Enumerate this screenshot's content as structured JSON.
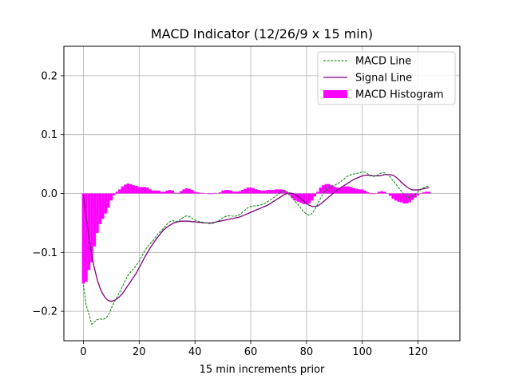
{
  "chart_data": {
    "type": "line",
    "title": "MACD Indicator (12/26/9 x 15 min)",
    "xlabel": "15 min increments prior",
    "ylabel": "",
    "xlim": [
      -7,
      135
    ],
    "ylim": [
      -0.25,
      0.25
    ],
    "x_ticks": [
      0,
      20,
      40,
      60,
      80,
      100,
      120
    ],
    "y_ticks": [
      -0.2,
      -0.1,
      0.0,
      0.1,
      0.2
    ],
    "x_tick_labels": [
      "0",
      "20",
      "40",
      "60",
      "80",
      "100",
      "120"
    ],
    "y_tick_labels": [
      "−0.2",
      "−0.1",
      "0.0",
      "0.1",
      "0.2"
    ],
    "grid": true,
    "legend_position": "top-right",
    "colors": {
      "macd": "#008000",
      "signal": "#800080",
      "histogram": "#ff00ff",
      "grid": "#b0b0b0"
    },
    "series": [
      {
        "name": "MACD Line",
        "style": "dashed",
        "points": [
          [
            0,
            -0.155
          ],
          [
            1,
            -0.19
          ],
          [
            2,
            -0.205
          ],
          [
            3,
            -0.222
          ],
          [
            4,
            -0.218
          ],
          [
            5,
            -0.214
          ],
          [
            6,
            -0.213
          ],
          [
            7,
            -0.214
          ],
          [
            8,
            -0.212
          ],
          [
            9,
            -0.206
          ],
          [
            10,
            -0.195
          ],
          [
            11,
            -0.185
          ],
          [
            12,
            -0.176
          ],
          [
            13,
            -0.168
          ],
          [
            14,
            -0.158
          ],
          [
            15,
            -0.148
          ],
          [
            16,
            -0.139
          ],
          [
            17,
            -0.133
          ],
          [
            18,
            -0.128
          ],
          [
            19,
            -0.122
          ],
          [
            20,
            -0.115
          ],
          [
            21,
            -0.106
          ],
          [
            22,
            -0.097
          ],
          [
            23,
            -0.09
          ],
          [
            24,
            -0.085
          ],
          [
            25,
            -0.08
          ],
          [
            26,
            -0.073
          ],
          [
            27,
            -0.067
          ],
          [
            28,
            -0.063
          ],
          [
            29,
            -0.058
          ],
          [
            30,
            -0.052
          ],
          [
            31,
            -0.048
          ],
          [
            32,
            -0.046
          ],
          [
            33,
            -0.048
          ],
          [
            34,
            -0.047
          ],
          [
            35,
            -0.043
          ],
          [
            36,
            -0.04
          ],
          [
            37,
            -0.038
          ],
          [
            38,
            -0.039
          ],
          [
            39,
            -0.042
          ],
          [
            40,
            -0.045
          ],
          [
            41,
            -0.047
          ],
          [
            42,
            -0.048
          ],
          [
            43,
            -0.049
          ],
          [
            44,
            -0.05
          ],
          [
            45,
            -0.051
          ],
          [
            46,
            -0.051
          ],
          [
            47,
            -0.05
          ],
          [
            48,
            -0.048
          ],
          [
            49,
            -0.045
          ],
          [
            50,
            -0.041
          ],
          [
            51,
            -0.039
          ],
          [
            52,
            -0.038
          ],
          [
            53,
            -0.038
          ],
          [
            54,
            -0.039
          ],
          [
            55,
            -0.038
          ],
          [
            56,
            -0.036
          ],
          [
            57,
            -0.032
          ],
          [
            58,
            -0.028
          ],
          [
            59,
            -0.024
          ],
          [
            60,
            -0.022
          ],
          [
            61,
            -0.021
          ],
          [
            62,
            -0.021
          ],
          [
            63,
            -0.02
          ],
          [
            64,
            -0.019
          ],
          [
            65,
            -0.017
          ],
          [
            66,
            -0.014
          ],
          [
            67,
            -0.011
          ],
          [
            68,
            -0.008
          ],
          [
            69,
            -0.004
          ],
          [
            70,
            -0.001
          ],
          [
            71,
            0.002
          ],
          [
            72,
            0.004
          ],
          [
            73,
            0.003
          ],
          [
            74,
            -0.002
          ],
          [
            75,
            -0.008
          ],
          [
            76,
            -0.014
          ],
          [
            77,
            -0.019
          ],
          [
            78,
            -0.025
          ],
          [
            79,
            -0.031
          ],
          [
            80,
            -0.035
          ],
          [
            81,
            -0.037
          ],
          [
            82,
            -0.034
          ],
          [
            83,
            -0.027
          ],
          [
            84,
            -0.018
          ],
          [
            85,
            -0.008
          ],
          [
            86,
            0.0
          ],
          [
            87,
            0.006
          ],
          [
            88,
            0.01
          ],
          [
            89,
            0.012
          ],
          [
            90,
            0.014
          ],
          [
            91,
            0.016
          ],
          [
            92,
            0.019
          ],
          [
            93,
            0.023
          ],
          [
            94,
            0.027
          ],
          [
            95,
            0.03
          ],
          [
            96,
            0.032
          ],
          [
            97,
            0.033
          ],
          [
            98,
            0.034
          ],
          [
            99,
            0.035
          ],
          [
            100,
            0.037
          ],
          [
            101,
            0.036
          ],
          [
            102,
            0.033
          ],
          [
            103,
            0.03
          ],
          [
            104,
            0.029
          ],
          [
            105,
            0.03
          ],
          [
            106,
            0.033
          ],
          [
            107,
            0.035
          ],
          [
            108,
            0.035
          ],
          [
            109,
            0.032
          ],
          [
            110,
            0.028
          ],
          [
            111,
            0.022
          ],
          [
            112,
            0.016
          ],
          [
            113,
            0.01
          ],
          [
            114,
            0.004
          ],
          [
            115,
            -0.002
          ],
          [
            116,
            -0.006
          ],
          [
            117,
            -0.007
          ],
          [
            118,
            -0.005
          ],
          [
            119,
            -0.001
          ],
          [
            120,
            0.003
          ],
          [
            121,
            0.007
          ],
          [
            122,
            0.01
          ],
          [
            123,
            0.012
          ],
          [
            124,
            0.013
          ]
        ]
      },
      {
        "name": "Signal Line",
        "style": "solid",
        "points": [
          [
            0,
            -0.002
          ],
          [
            1,
            -0.04
          ],
          [
            2,
            -0.075
          ],
          [
            3,
            -0.105
          ],
          [
            4,
            -0.128
          ],
          [
            5,
            -0.147
          ],
          [
            6,
            -0.161
          ],
          [
            7,
            -0.171
          ],
          [
            8,
            -0.178
          ],
          [
            9,
            -0.182
          ],
          [
            10,
            -0.183
          ],
          [
            11,
            -0.182
          ],
          [
            12,
            -0.179
          ],
          [
            13,
            -0.175
          ],
          [
            14,
            -0.17
          ],
          [
            15,
            -0.163
          ],
          [
            16,
            -0.156
          ],
          [
            17,
            -0.149
          ],
          [
            18,
            -0.142
          ],
          [
            19,
            -0.135
          ],
          [
            20,
            -0.126
          ],
          [
            21,
            -0.117
          ],
          [
            22,
            -0.108
          ],
          [
            23,
            -0.1
          ],
          [
            24,
            -0.092
          ],
          [
            25,
            -0.085
          ],
          [
            26,
            -0.078
          ],
          [
            27,
            -0.072
          ],
          [
            28,
            -0.066
          ],
          [
            29,
            -0.061
          ],
          [
            30,
            -0.057
          ],
          [
            31,
            -0.054
          ],
          [
            32,
            -0.051
          ],
          [
            33,
            -0.049
          ],
          [
            34,
            -0.048
          ],
          [
            35,
            -0.047
          ],
          [
            36,
            -0.047
          ],
          [
            37,
            -0.047
          ],
          [
            38,
            -0.047
          ],
          [
            39,
            -0.048
          ],
          [
            40,
            -0.048
          ],
          [
            41,
            -0.049
          ],
          [
            42,
            -0.049
          ],
          [
            43,
            -0.05
          ],
          [
            44,
            -0.05
          ],
          [
            45,
            -0.05
          ],
          [
            46,
            -0.05
          ],
          [
            47,
            -0.049
          ],
          [
            48,
            -0.048
          ],
          [
            49,
            -0.047
          ],
          [
            50,
            -0.046
          ],
          [
            51,
            -0.045
          ],
          [
            52,
            -0.044
          ],
          [
            53,
            -0.043
          ],
          [
            54,
            -0.042
          ],
          [
            55,
            -0.041
          ],
          [
            56,
            -0.04
          ],
          [
            57,
            -0.038
          ],
          [
            58,
            -0.036
          ],
          [
            59,
            -0.034
          ],
          [
            60,
            -0.032
          ],
          [
            61,
            -0.03
          ],
          [
            62,
            -0.028
          ],
          [
            63,
            -0.026
          ],
          [
            64,
            -0.024
          ],
          [
            65,
            -0.022
          ],
          [
            66,
            -0.02
          ],
          [
            67,
            -0.017
          ],
          [
            68,
            -0.014
          ],
          [
            69,
            -0.011
          ],
          [
            70,
            -0.008
          ],
          [
            71,
            -0.005
          ],
          [
            72,
            -0.002
          ],
          [
            73,
            0.0
          ],
          [
            74,
            0.001
          ],
          [
            75,
            0.0
          ],
          [
            76,
            -0.002
          ],
          [
            77,
            -0.005
          ],
          [
            78,
            -0.009
          ],
          [
            79,
            -0.013
          ],
          [
            80,
            -0.017
          ],
          [
            81,
            -0.02
          ],
          [
            82,
            -0.022
          ],
          [
            83,
            -0.022
          ],
          [
            84,
            -0.021
          ],
          [
            85,
            -0.018
          ],
          [
            86,
            -0.014
          ],
          [
            87,
            -0.01
          ],
          [
            88,
            -0.006
          ],
          [
            89,
            -0.002
          ],
          [
            90,
            0.002
          ],
          [
            91,
            0.006
          ],
          [
            92,
            0.009
          ],
          [
            93,
            0.012
          ],
          [
            94,
            0.015
          ],
          [
            95,
            0.018
          ],
          [
            96,
            0.021
          ],
          [
            97,
            0.024
          ],
          [
            98,
            0.026
          ],
          [
            99,
            0.028
          ],
          [
            100,
            0.03
          ],
          [
            101,
            0.031
          ],
          [
            102,
            0.031
          ],
          [
            103,
            0.031
          ],
          [
            104,
            0.03
          ],
          [
            105,
            0.03
          ],
          [
            106,
            0.03
          ],
          [
            107,
            0.031
          ],
          [
            108,
            0.032
          ],
          [
            109,
            0.032
          ],
          [
            110,
            0.032
          ],
          [
            111,
            0.031
          ],
          [
            112,
            0.028
          ],
          [
            113,
            0.024
          ],
          [
            114,
            0.019
          ],
          [
            115,
            0.015
          ],
          [
            116,
            0.011
          ],
          [
            117,
            0.008
          ],
          [
            118,
            0.006
          ],
          [
            119,
            0.006
          ],
          [
            120,
            0.006
          ],
          [
            121,
            0.007
          ],
          [
            122,
            0.008
          ],
          [
            123,
            0.009
          ],
          [
            124,
            0.01
          ]
        ]
      }
    ],
    "histogram": {
      "name": "MACD Histogram",
      "bar_width": 1.0,
      "values": [
        -0.153,
        -0.15,
        -0.13,
        -0.117,
        -0.09,
        -0.067,
        -0.052,
        -0.043,
        -0.034,
        -0.024,
        -0.012,
        -0.003,
        0.003,
        0.007,
        0.012,
        0.015,
        0.017,
        0.016,
        0.014,
        0.013,
        0.011,
        0.011,
        0.011,
        0.01,
        0.007,
        0.005,
        0.005,
        0.005,
        0.003,
        0.003,
        0.005,
        0.006,
        0.005,
        0.001,
        0.001,
        0.004,
        0.007,
        0.009,
        0.008,
        0.006,
        0.003,
        0.002,
        0.001,
        0.001,
        0.0,
        -0.001,
        -0.001,
        0.001,
        0.0,
        0.002,
        0.005,
        0.006,
        0.006,
        0.005,
        0.003,
        0.003,
        0.004,
        0.006,
        0.008,
        0.01,
        0.01,
        0.009,
        0.007,
        0.006,
        0.005,
        0.005,
        0.006,
        0.006,
        0.006,
        0.007,
        0.007,
        0.007,
        0.006,
        0.003,
        -0.003,
        -0.008,
        -0.012,
        -0.014,
        -0.016,
        -0.018,
        -0.018,
        -0.017,
        -0.012,
        -0.005,
        0.003,
        0.01,
        0.014,
        0.016,
        0.016,
        0.014,
        0.012,
        0.01,
        0.01,
        0.011,
        0.012,
        0.012,
        0.011,
        0.009,
        0.008,
        0.007,
        0.007,
        0.005,
        0.002,
        -0.001,
        -0.001,
        0.0,
        0.003,
        0.004,
        0.003,
        0.0,
        -0.004,
        -0.009,
        -0.012,
        -0.014,
        -0.015,
        -0.017,
        -0.017,
        -0.015,
        -0.011,
        -0.007,
        -0.003,
        0.0,
        0.002,
        0.003,
        0.003
      ],
      "x_start": 0
    },
    "legend": [
      "MACD Line",
      "Signal Line",
      "MACD Histogram"
    ]
  }
}
